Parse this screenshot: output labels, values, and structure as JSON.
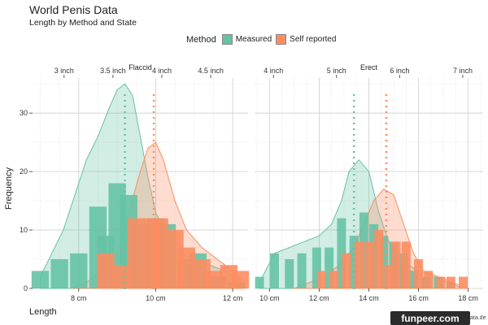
{
  "title": "World Penis Data",
  "subtitle": "Length by Method and State",
  "legend": {
    "title": "Method",
    "items": [
      {
        "label": "Measured",
        "color": "#66c2a5"
      },
      {
        "label": "Self reported",
        "color": "#fc8d62"
      }
    ]
  },
  "watermark": "funpeer.com",
  "watermark_suffix": "ata.de",
  "chart_data": [
    {
      "type": "bar",
      "panel_title": "Flaccid",
      "xlabel": "Length",
      "ylabel": "Frequency",
      "xlim": [
        6.8,
        12.4
      ],
      "ylim": [
        0,
        36
      ],
      "bottom_ticks": [
        "8 cm",
        "10 cm",
        "12 cm"
      ],
      "bottom_tick_values": [
        8,
        10,
        12
      ],
      "top_ticks": [
        "3 inch",
        "3.5 inch",
        "4 inch",
        "4.5 inch"
      ],
      "top_tick_values": [
        7.62,
        8.89,
        10.16,
        11.43
      ],
      "y_ticks": [
        0,
        10,
        20,
        30
      ],
      "bin_width": 0.5,
      "series": [
        {
          "name": "Measured",
          "color": "#66c2a5",
          "bins": [
            7.0,
            7.5,
            8.0,
            8.5,
            8.7,
            9.0,
            9.3,
            9.6,
            10.0,
            10.3,
            10.8,
            11.1,
            11.6,
            12.1
          ],
          "values": [
            3,
            5,
            6,
            14,
            9,
            18,
            16,
            11,
            12,
            11,
            5,
            6,
            2,
            1
          ],
          "mean": 9.2
        },
        {
          "name": "Self reported",
          "color": "#fc8d62",
          "bins": [
            8.7,
            9.1,
            9.5,
            9.9,
            10.1,
            10.5,
            10.8,
            11.2,
            11.5,
            11.9,
            12.2
          ],
          "values": [
            6,
            4,
            12,
            12,
            12,
            10,
            7,
            5,
            3,
            4,
            3
          ],
          "mean": 9.95
        }
      ],
      "density": [
        {
          "name": "Measured",
          "x": [
            7.0,
            7.3,
            7.6,
            7.9,
            8.2,
            8.5,
            8.8,
            9.0,
            9.2,
            9.4,
            9.6,
            9.8,
            10.0,
            10.3,
            10.6,
            11.0,
            11.4,
            11.8,
            12.2
          ],
          "y": [
            2,
            6,
            10,
            16,
            22,
            26,
            31,
            34,
            35,
            33,
            26,
            19,
            13,
            9,
            6,
            5,
            4,
            3,
            1
          ]
        },
        {
          "name": "Self reported",
          "x": [
            7.8,
            8.2,
            8.6,
            9.0,
            9.3,
            9.6,
            9.8,
            10.0,
            10.2,
            10.5,
            10.8,
            11.2,
            11.6,
            12.0,
            12.3
          ],
          "y": [
            0,
            1,
            3,
            6,
            13,
            20,
            24,
            25,
            22,
            15,
            10,
            7,
            5,
            3,
            1
          ]
        }
      ]
    },
    {
      "type": "bar",
      "panel_title": "Erect",
      "xlim": [
        9.4,
        18.6
      ],
      "ylim": [
        0,
        36
      ],
      "bottom_ticks": [
        "10 cm",
        "12 cm",
        "14 cm",
        "16 cm",
        "18 cm"
      ],
      "bottom_tick_values": [
        10,
        12,
        14,
        16,
        18
      ],
      "top_ticks": [
        "4 inch",
        "5 inch",
        "6 inch",
        "7 inch"
      ],
      "top_tick_values": [
        10.16,
        12.7,
        15.24,
        17.78
      ],
      "y_ticks": [
        0,
        10,
        20,
        30
      ],
      "bin_width": 0.4,
      "series": [
        {
          "name": "Measured",
          "color": "#66c2a5",
          "bins": [
            9.6,
            10.2,
            10.8,
            11.3,
            11.9,
            12.4,
            12.9,
            13.4,
            13.8,
            14.2,
            14.6,
            15.0,
            15.4,
            15.8,
            16.3,
            16.8,
            17.3
          ],
          "values": [
            2,
            6,
            5,
            6,
            7,
            7,
            12,
            9,
            13,
            11,
            9,
            8,
            6,
            3,
            2,
            2,
            1
          ],
          "mean": 13.4
        },
        {
          "name": "Self reported",
          "color": "#fc8d62",
          "bins": [
            12.1,
            12.6,
            13.1,
            13.6,
            14.0,
            14.4,
            14.8,
            15.1,
            15.5,
            16.0,
            16.4,
            16.9,
            17.3,
            17.8
          ],
          "values": [
            3,
            3,
            6,
            8,
            8,
            10,
            4,
            8,
            8,
            5,
            3,
            2,
            2,
            2
          ],
          "mean": 14.7
        }
      ],
      "density": [
        {
          "name": "Measured",
          "x": [
            9.6,
            10.2,
            10.8,
            11.4,
            12.0,
            12.5,
            12.9,
            13.2,
            13.6,
            14.0,
            14.4,
            14.8,
            15.2,
            15.6,
            16.0,
            16.6,
            17.2,
            17.8
          ],
          "y": [
            1,
            6,
            7,
            8,
            9,
            11,
            15,
            20,
            22,
            20,
            13,
            8,
            5,
            4,
            3,
            2,
            1,
            0
          ]
        },
        {
          "name": "Self reported",
          "x": [
            11.0,
            11.6,
            12.2,
            12.8,
            13.4,
            13.8,
            14.2,
            14.6,
            15.0,
            15.4,
            15.8,
            16.2,
            16.8,
            17.4,
            18.0
          ],
          "y": [
            0,
            1,
            2,
            4,
            7,
            11,
            15,
            17,
            16,
            11,
            6,
            3,
            2,
            1,
            0
          ]
        }
      ]
    }
  ]
}
